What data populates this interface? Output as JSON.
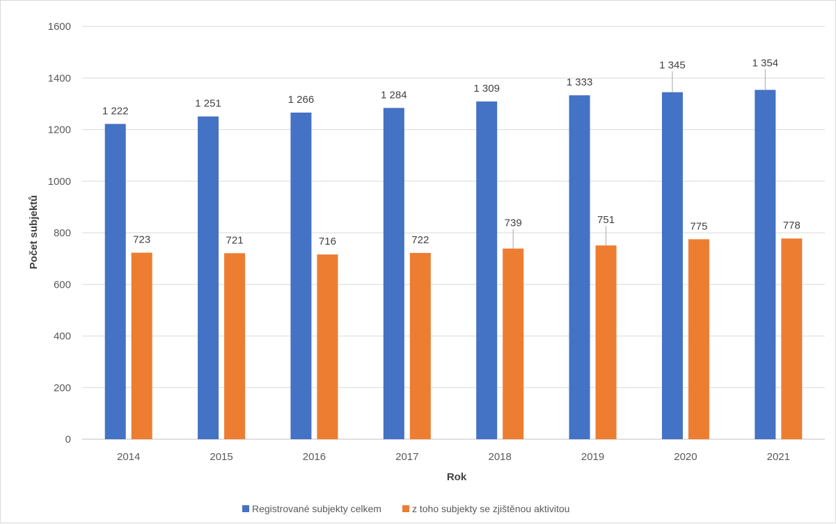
{
  "chart_data": {
    "type": "bar",
    "title": "",
    "xlabel": "Rok",
    "ylabel": "Počet subjektů",
    "ylim": [
      0,
      1600
    ],
    "yticks": [
      0,
      200,
      400,
      600,
      800,
      1000,
      1200,
      1400,
      1600
    ],
    "grid": true,
    "legend_position": "bottom",
    "categories": [
      "2014",
      "2015",
      "2016",
      "2017",
      "2018",
      "2019",
      "2020",
      "2021"
    ],
    "series": [
      {
        "name": "Registrované subjekty celkem",
        "color": "#4472c4",
        "values": [
          1222,
          1251,
          1266,
          1284,
          1309,
          1333,
          1345,
          1354
        ],
        "labels": [
          "1 222",
          "1 251",
          "1 266",
          "1 284",
          "1 309",
          "1 333",
          "1 345",
          "1 354"
        ]
      },
      {
        "name": "z toho subjekty se zjištěnou aktivitou",
        "color": "#ed7d31",
        "values": [
          723,
          721,
          716,
          722,
          739,
          751,
          775,
          778
        ],
        "labels": [
          "723",
          "721",
          "716",
          "722",
          "739",
          "751",
          "775",
          "778"
        ]
      }
    ]
  }
}
